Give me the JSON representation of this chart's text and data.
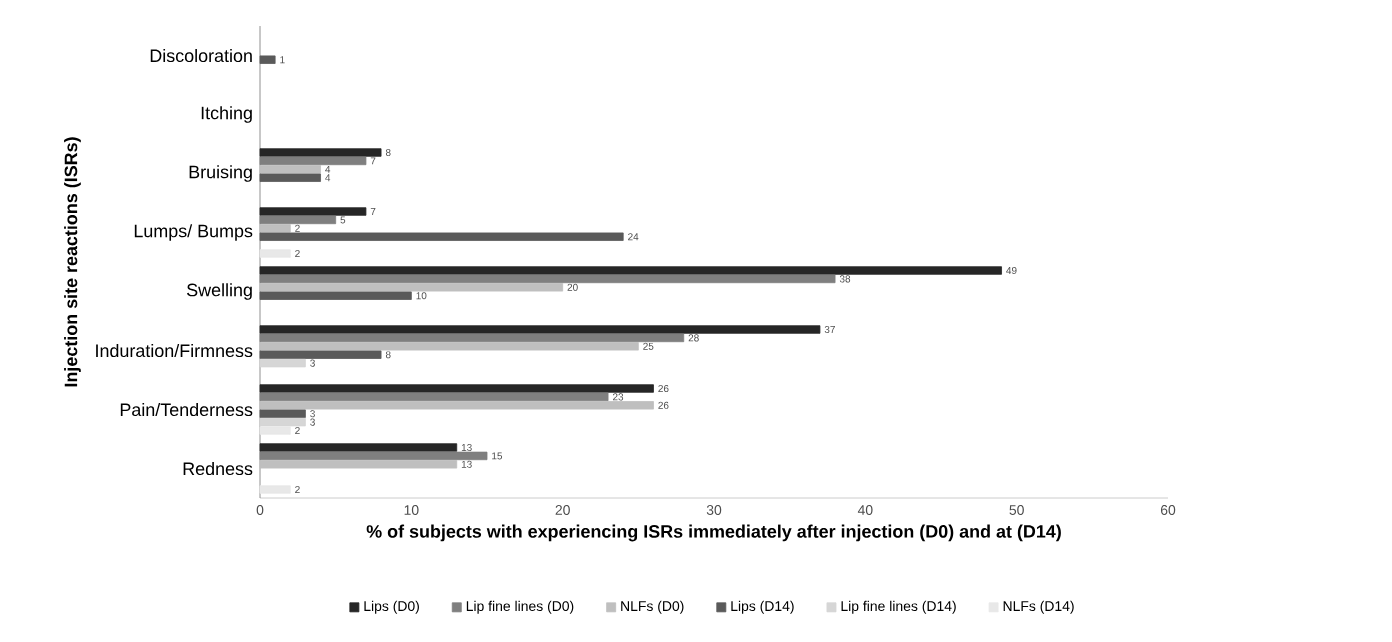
{
  "chart_data": {
    "type": "bar",
    "orientation": "horizontal",
    "xlabel": "% of subjects with experiencing ISRs immediately after injection (D0) and at (D14)",
    "ylabel": "Injection site reactions (ISRs)",
    "categories": [
      "Discoloration",
      "Itching",
      "Bruising",
      "Lumps/ Bumps",
      "Swelling",
      "Induration/Firmness",
      "Pain/Tenderness",
      "Redness"
    ],
    "xlim": [
      0,
      60
    ],
    "xticks": [
      0,
      10,
      20,
      30,
      40,
      50,
      60
    ],
    "legend": "bottom",
    "grid": false,
    "series": [
      {
        "name": "Lips (D0)",
        "color": "#262626",
        "values": [
          null,
          null,
          8,
          7,
          49,
          37,
          26,
          13
        ],
        "value_labels": [
          null,
          null,
          "8",
          "7",
          "49",
          "37",
          "26",
          "13"
        ]
      },
      {
        "name": "Lip fine lines (D0)",
        "color": "#7f7f7f",
        "values": [
          null,
          null,
          7,
          5,
          38,
          28,
          23,
          15
        ],
        "value_labels": [
          null,
          null,
          "7",
          "5",
          "38",
          "28",
          "23",
          "15"
        ]
      },
      {
        "name": "NLFs (D0)",
        "color": "#bfbfbf",
        "values": [
          null,
          null,
          4,
          2,
          20,
          25,
          26,
          13
        ],
        "value_labels": [
          null,
          null,
          "4",
          "2",
          "20",
          "25",
          "26",
          "13"
        ]
      },
      {
        "name": "Lips (D14)",
        "color": "#5a5a5a",
        "values": [
          1,
          null,
          4,
          24,
          10,
          8,
          3,
          null
        ],
        "value_labels": [
          "1",
          null,
          "4",
          "24",
          "10",
          "8",
          "3",
          null
        ]
      },
      {
        "name": "Lip fine lines (D14)",
        "color": "#d6d6d6",
        "values": [
          null,
          null,
          null,
          null,
          null,
          3,
          3,
          null
        ],
        "value_labels": [
          null,
          null,
          null,
          null,
          null,
          "3",
          "3",
          null
        ]
      },
      {
        "name": "NLFs (D14)",
        "color": "#e8e8e8",
        "values": [
          null,
          null,
          null,
          2,
          null,
          null,
          2,
          2
        ],
        "value_labels": [
          null,
          null,
          null,
          "2",
          null,
          null,
          "2",
          "2"
        ]
      }
    ]
  }
}
